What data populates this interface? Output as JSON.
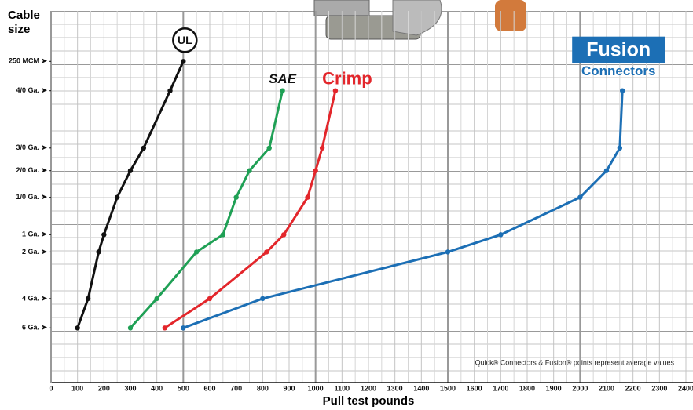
{
  "chart_data": {
    "type": "line",
    "orientation": "horizontal",
    "y_title_lines": [
      "Cable",
      "size"
    ],
    "x_title": "Pull test pounds",
    "annotation": "Quick® Connectors & Fusion® points represent average values",
    "subtitle_label": "Connectors",
    "xlim": [
      0,
      2400
    ],
    "xticks": [
      0,
      100,
      200,
      300,
      400,
      500,
      600,
      700,
      800,
      900,
      1000,
      1100,
      1200,
      1300,
      1400,
      1500,
      1600,
      1700,
      1800,
      1900,
      2000,
      2100,
      2200,
      2300,
      2400
    ],
    "ylim": [
      0,
      28
    ],
    "yticks": [
      {
        "value": 4.1,
        "label": "6 Ga. ➤"
      },
      {
        "value": 6.3,
        "label": "4 Ga. ➤"
      },
      {
        "value": 9.8,
        "label": "2 Ga. ➤"
      },
      {
        "value": 11.1,
        "label": "1 Ga. ➤"
      },
      {
        "value": 13.9,
        "label": "1/0 Ga. ➤"
      },
      {
        "value": 15.9,
        "label": "2/0 Ga. ➤"
      },
      {
        "value": 17.6,
        "label": "3/0 Ga. ➤"
      },
      {
        "value": 21.9,
        "label": "4/0 Ga. ➤"
      },
      {
        "value": 24.1,
        "label": "250 MCM ➤"
      }
    ],
    "grid": true,
    "series": [
      {
        "name": "UL",
        "color": "#111111",
        "values": [
          100,
          140,
          180,
          200,
          250,
          300,
          350,
          450,
          500
        ]
      },
      {
        "name": "SAE",
        "color": "#1fa055",
        "values": [
          300,
          400,
          550,
          650,
          700,
          750,
          825,
          875,
          null
        ]
      },
      {
        "name": "Crimp",
        "color": "#e3262b",
        "values": [
          430,
          600,
          815,
          880,
          970,
          1000,
          1025,
          1075,
          null
        ]
      },
      {
        "name": "Fusion",
        "color": "#1c6fb5",
        "values": [
          500,
          800,
          1500,
          1700,
          2000,
          2100,
          2150,
          2160,
          null
        ]
      }
    ]
  }
}
